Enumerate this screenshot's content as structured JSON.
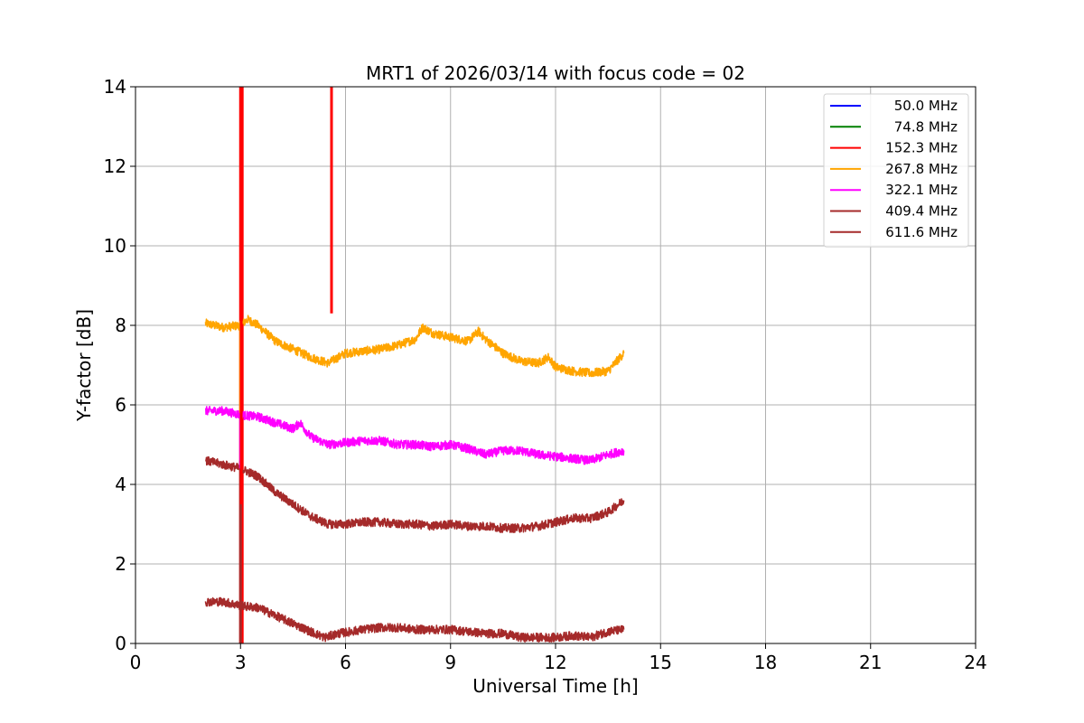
{
  "chart_data": {
    "type": "line",
    "title": "MRT1 of 2026/03/14 with focus code = 02",
    "xlabel": "Universal Time [h]",
    "ylabel": "Y-factor [dB]",
    "xlim": [
      0,
      24
    ],
    "ylim": [
      0,
      14
    ],
    "xticks": [
      0,
      3,
      6,
      9,
      12,
      15,
      18,
      21,
      24
    ],
    "yticks": [
      0,
      2,
      4,
      6,
      8,
      10,
      12,
      14
    ],
    "grid": true,
    "legend_position": "top-right",
    "series": [
      {
        "name": "50.0 MHz",
        "color": "#0000ff",
        "points": []
      },
      {
        "name": "74.8 MHz",
        "color": "#008000",
        "points": []
      },
      {
        "name": "152.3 MHz",
        "color": "#ff0000",
        "points": [
          [
            3.0,
            0
          ],
          [
            3.0,
            14
          ],
          [
            3.05,
            14
          ],
          [
            3.05,
            0
          ],
          [
            5.6,
            14
          ],
          [
            5.6,
            8.3
          ]
        ]
      },
      {
        "name": "267.8 MHz",
        "color": "#ffa500",
        "points": [
          [
            2.0,
            8.05
          ],
          [
            2.5,
            7.95
          ],
          [
            3.0,
            8.0
          ],
          [
            3.2,
            8.15
          ],
          [
            3.5,
            8.0
          ],
          [
            4.0,
            7.6
          ],
          [
            4.5,
            7.4
          ],
          [
            5.0,
            7.2
          ],
          [
            5.5,
            7.05
          ],
          [
            6.0,
            7.3
          ],
          [
            6.5,
            7.35
          ],
          [
            7.0,
            7.4
          ],
          [
            7.5,
            7.5
          ],
          [
            8.0,
            7.65
          ],
          [
            8.2,
            7.95
          ],
          [
            8.5,
            7.8
          ],
          [
            9.0,
            7.7
          ],
          [
            9.5,
            7.6
          ],
          [
            9.8,
            7.85
          ],
          [
            10.0,
            7.65
          ],
          [
            10.5,
            7.3
          ],
          [
            11.0,
            7.1
          ],
          [
            11.5,
            7.05
          ],
          [
            11.8,
            7.2
          ],
          [
            12.0,
            6.95
          ],
          [
            12.5,
            6.85
          ],
          [
            13.0,
            6.8
          ],
          [
            13.5,
            6.85
          ],
          [
            13.8,
            7.15
          ],
          [
            13.95,
            7.3
          ]
        ]
      },
      {
        "name": "322.1 MHz",
        "color": "#ff00ff",
        "points": [
          [
            2.0,
            5.85
          ],
          [
            2.5,
            5.85
          ],
          [
            3.0,
            5.75
          ],
          [
            3.5,
            5.7
          ],
          [
            4.0,
            5.55
          ],
          [
            4.5,
            5.4
          ],
          [
            4.7,
            5.55
          ],
          [
            5.0,
            5.2
          ],
          [
            5.5,
            5.0
          ],
          [
            6.0,
            5.05
          ],
          [
            6.5,
            5.1
          ],
          [
            7.0,
            5.1
          ],
          [
            7.5,
            5.0
          ],
          [
            8.0,
            5.0
          ],
          [
            8.5,
            4.95
          ],
          [
            9.0,
            5.0
          ],
          [
            9.5,
            4.9
          ],
          [
            10.0,
            4.75
          ],
          [
            10.5,
            4.85
          ],
          [
            11.0,
            4.85
          ],
          [
            11.5,
            4.75
          ],
          [
            12.0,
            4.7
          ],
          [
            12.5,
            4.65
          ],
          [
            13.0,
            4.6
          ],
          [
            13.5,
            4.75
          ],
          [
            13.95,
            4.85
          ]
        ]
      },
      {
        "name": "409.4 MHz",
        "color": "#a52a2a",
        "points": [
          [
            2.0,
            4.6
          ],
          [
            2.5,
            4.5
          ],
          [
            3.0,
            4.4
          ],
          [
            3.5,
            4.2
          ],
          [
            4.0,
            3.8
          ],
          [
            4.5,
            3.5
          ],
          [
            5.0,
            3.2
          ],
          [
            5.5,
            3.0
          ],
          [
            6.0,
            3.0
          ],
          [
            6.5,
            3.05
          ],
          [
            7.0,
            3.05
          ],
          [
            7.5,
            3.0
          ],
          [
            8.0,
            3.0
          ],
          [
            8.5,
            2.95
          ],
          [
            9.0,
            3.0
          ],
          [
            9.5,
            2.95
          ],
          [
            10.0,
            2.95
          ],
          [
            10.5,
            2.9
          ],
          [
            11.0,
            2.9
          ],
          [
            11.5,
            2.95
          ],
          [
            12.0,
            3.05
          ],
          [
            12.5,
            3.15
          ],
          [
            13.0,
            3.15
          ],
          [
            13.5,
            3.3
          ],
          [
            13.95,
            3.6
          ]
        ]
      },
      {
        "name": "611.6 MHz",
        "color": "#a52a2a",
        "points": [
          [
            2.0,
            1.05
          ],
          [
            2.5,
            1.05
          ],
          [
            3.0,
            0.95
          ],
          [
            3.5,
            0.9
          ],
          [
            4.0,
            0.7
          ],
          [
            4.5,
            0.5
          ],
          [
            5.0,
            0.3
          ],
          [
            5.4,
            0.15
          ],
          [
            5.8,
            0.25
          ],
          [
            6.5,
            0.35
          ],
          [
            7.0,
            0.4
          ],
          [
            7.5,
            0.4
          ],
          [
            8.0,
            0.35
          ],
          [
            8.5,
            0.35
          ],
          [
            9.0,
            0.35
          ],
          [
            9.5,
            0.3
          ],
          [
            10.0,
            0.25
          ],
          [
            10.5,
            0.25
          ],
          [
            11.0,
            0.15
          ],
          [
            11.5,
            0.15
          ],
          [
            12.0,
            0.15
          ],
          [
            12.5,
            0.2
          ],
          [
            13.0,
            0.15
          ],
          [
            13.5,
            0.3
          ],
          [
            13.95,
            0.35
          ]
        ]
      }
    ],
    "spikes": [
      {
        "series": "611.6 MHz",
        "x": 3.0,
        "from": 0,
        "to": 4.6
      },
      {
        "series": "322.1 MHz",
        "x": 3.0,
        "from": 4.4,
        "to": 5.8
      },
      {
        "series": "267.8 MHz",
        "x": 3.0,
        "from": 5.8,
        "to": 8.1
      }
    ]
  }
}
